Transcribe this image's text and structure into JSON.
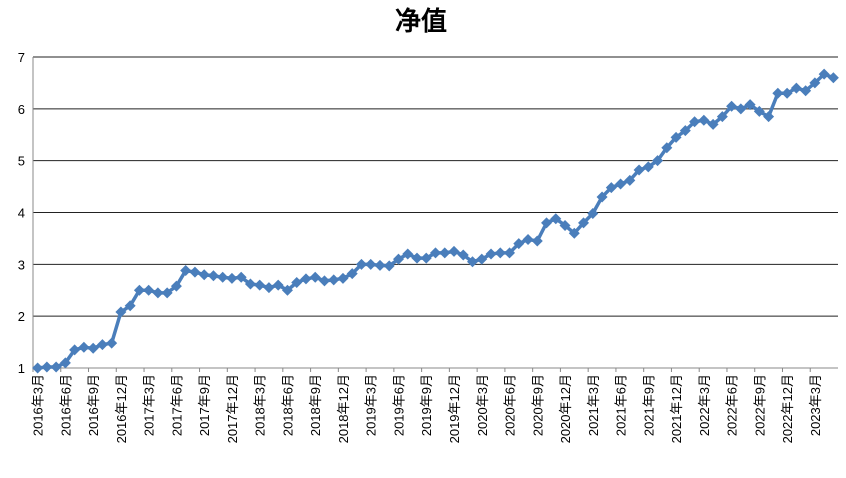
{
  "chart_data": {
    "type": "line",
    "title": "净值",
    "categories": [
      "2016年3月",
      null,
      null,
      "2016年6月",
      null,
      null,
      "2016年9月",
      null,
      null,
      "2016年12月",
      null,
      null,
      "2017年3月",
      null,
      null,
      "2017年6月",
      null,
      null,
      "2017年9月",
      null,
      null,
      "2017年12月",
      null,
      null,
      "2018年3月",
      null,
      null,
      "2018年6月",
      null,
      null,
      "2018年9月",
      null,
      null,
      "2018年12月",
      null,
      null,
      "2019年3月",
      null,
      null,
      "2019年6月",
      null,
      null,
      "2019年9月",
      null,
      null,
      "2019年12月",
      null,
      null,
      "2020年3月",
      null,
      null,
      "2020年6月",
      null,
      null,
      "2020年9月",
      null,
      null,
      "2020年12月",
      null,
      null,
      "2021年3月",
      null,
      null,
      "2021年6月",
      null,
      null,
      "2021年9月",
      null,
      null,
      "2021年12月",
      null,
      null,
      "2022年3月",
      null,
      null,
      "2022年6月",
      null,
      null,
      "2022年9月",
      null,
      null,
      "2022年12月",
      null,
      null,
      "2023年3月",
      null,
      null
    ],
    "series": [
      {
        "color": "#4a7ebb",
        "values": [
          1.0,
          1.02,
          1.02,
          1.1,
          1.35,
          1.4,
          1.38,
          1.45,
          1.48,
          2.08,
          2.2,
          2.5,
          2.5,
          2.45,
          2.45,
          2.58,
          2.88,
          2.85,
          2.8,
          2.78,
          2.75,
          2.73,
          2.75,
          2.62,
          2.6,
          2.55,
          2.6,
          2.5,
          2.65,
          2.72,
          2.75,
          2.68,
          2.7,
          2.73,
          2.82,
          3.0,
          3.0,
          2.98,
          2.97,
          3.1,
          3.2,
          3.12,
          3.12,
          3.22,
          3.22,
          3.25,
          3.18,
          3.05,
          3.1,
          3.2,
          3.22,
          3.22,
          3.4,
          3.48,
          3.45,
          3.8,
          3.88,
          3.75,
          3.6,
          3.8,
          3.98,
          4.3,
          4.48,
          4.55,
          4.62,
          4.82,
          4.88,
          5.0,
          5.25,
          5.45,
          5.58,
          5.75,
          5.78,
          5.7,
          5.85,
          6.05,
          6.0,
          6.08,
          5.95,
          5.85,
          6.3,
          6.3,
          6.4,
          6.35,
          6.5,
          6.67,
          6.6
        ]
      }
    ],
    "ylim": [
      1,
      7
    ],
    "yticks": [
      1,
      2,
      3,
      4,
      5,
      6,
      7
    ],
    "grid": true
  }
}
